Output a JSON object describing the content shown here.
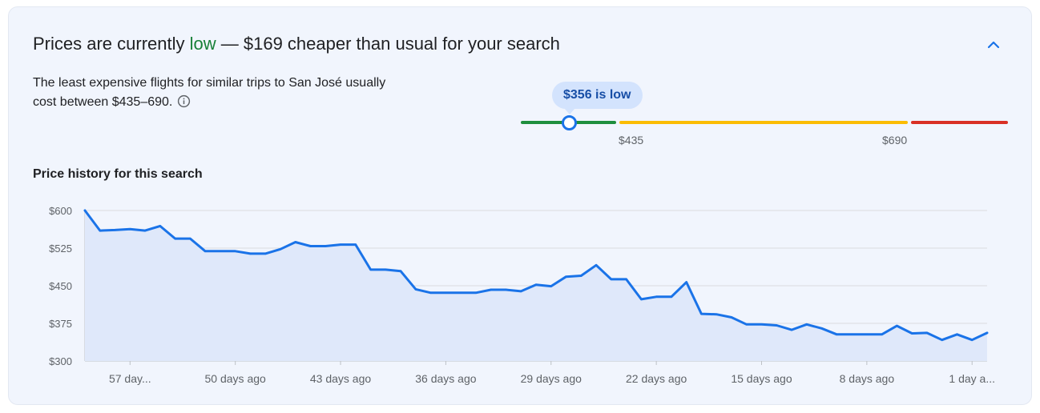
{
  "header": {
    "headline_prefix": "Prices are currently ",
    "headline_status": "low",
    "headline_suffix": " — $169 cheaper than usual for your search",
    "collapse_icon": "chevron-up-icon"
  },
  "summary": {
    "description": "The least expensive flights for similar trips to San José usually cost between $435–690.",
    "info_icon": "info-icon"
  },
  "price_range": {
    "current_label": "$356 is low",
    "low_threshold_label": "$435",
    "high_threshold_label": "$690",
    "current_price": 356,
    "low_threshold": 435,
    "high_threshold": 690,
    "colors": {
      "low": "#1e8e3e",
      "typical": "#fbbc04",
      "high": "#d93025",
      "marker": "#1a73e8"
    }
  },
  "history": {
    "title": "Price history for this search"
  },
  "chart_data": {
    "type": "area",
    "ylim": [
      300,
      600
    ],
    "yticks": [
      "$300",
      "$375",
      "$450",
      "$525",
      "$600"
    ],
    "ytick_values": [
      300,
      375,
      450,
      525,
      600
    ],
    "xticks": [
      "57 day...",
      "50 days ago",
      "43 days ago",
      "36 days ago",
      "29 days ago",
      "22 days ago",
      "15 days ago",
      "8 days ago",
      "1 day a..."
    ],
    "xtick_days_ago": [
      57,
      50,
      43,
      36,
      29,
      22,
      15,
      8,
      1
    ],
    "grid": true,
    "line_color": "#1a73e8",
    "fill_color": "#dfe8fa",
    "series": [
      {
        "days_ago": [
          60,
          59,
          58,
          57,
          56,
          55,
          54,
          53,
          52,
          51,
          50,
          49,
          48,
          47,
          46,
          45,
          44,
          43,
          42,
          41,
          40,
          39,
          38,
          37,
          36,
          35,
          34,
          33,
          32,
          31,
          30,
          29,
          28,
          27,
          26,
          25,
          24,
          23,
          22,
          21,
          20,
          19,
          18,
          17,
          16,
          15,
          14,
          13,
          12,
          11,
          10,
          9,
          8,
          7,
          6,
          5,
          4,
          3,
          2,
          1,
          0
        ],
        "values": [
          600,
          560,
          561,
          563,
          560,
          569,
          544,
          544,
          519,
          519,
          519,
          514,
          514,
          523,
          537,
          529,
          529,
          532,
          532,
          482,
          482,
          479,
          443,
          436,
          436,
          436,
          436,
          442,
          442,
          439,
          452,
          449,
          468,
          470,
          491,
          463,
          463,
          423,
          428,
          428,
          457,
          394,
          393,
          387,
          373,
          373,
          371,
          362,
          373,
          365,
          353,
          353,
          353,
          353,
          370,
          355,
          356,
          342,
          353,
          342,
          356
        ]
      }
    ]
  }
}
